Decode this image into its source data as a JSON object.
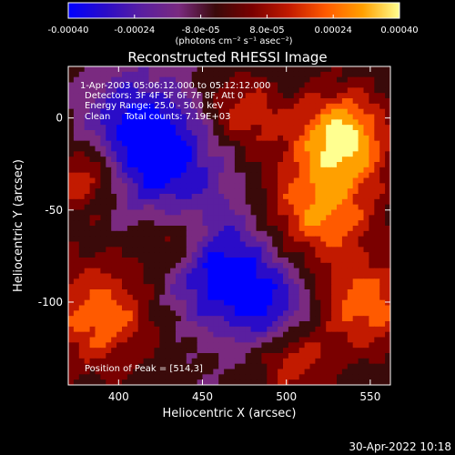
{
  "colorbar": {
    "ticks": [
      "-0.00040",
      "-0.00024",
      "-8.0e-05",
      "8.0e-05",
      "0.00024",
      "0.00040"
    ],
    "range": [
      -0.0004,
      0.0004
    ],
    "unit_label": "(photons cm⁻² s⁻¹ asec⁻²)",
    "colormap": [
      "#0000ff",
      "#2a0cc8",
      "#5a1fa0",
      "#7a2a80",
      "#3a0a0a",
      "#7a0000",
      "#c21a00",
      "#ff5a00",
      "#ffa000",
      "#ffff90"
    ]
  },
  "chart_data": {
    "type": "heatmap",
    "title": "Reconstructed RHESSI Image",
    "xlabel": "Heliocentric X (arcsec)",
    "ylabel": "Heliocentric Y (arcsec)",
    "xlim": [
      370,
      562
    ],
    "ylim": [
      -145,
      28
    ],
    "xticks": [
      400,
      450,
      500,
      550
    ],
    "yticks": [
      0,
      -50,
      -100
    ],
    "annotations": {
      "time_range": "1-Apr-2003 05:06:12.000 to 05:12:12.000",
      "detectors": "Detectors: 3F 4F 5F 6F 7F 8F, Att 0",
      "energy_range": "Energy Range: 25.0 - 50.0 keV",
      "clean_counts": "Clean     Total counts: 7.19E+03",
      "peak_position": "Position of Peak = [514,3]"
    },
    "peak": [
      514,
      3
    ]
  },
  "timestamp": "30-Apr-2022 10:18"
}
